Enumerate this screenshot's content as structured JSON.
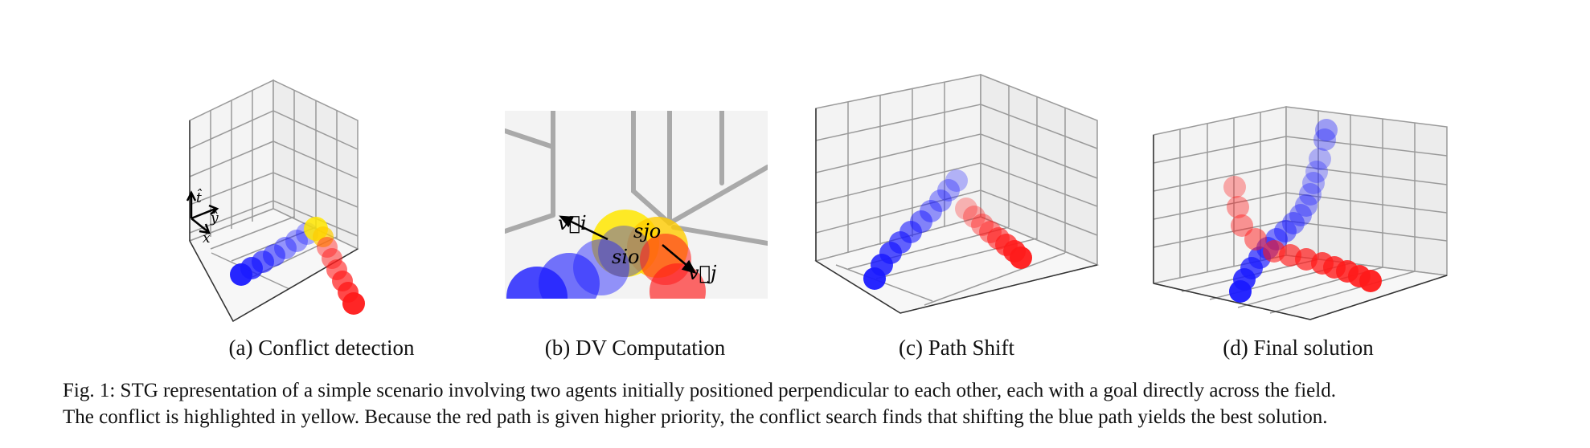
{
  "figure": {
    "panels": [
      {
        "id": "a",
        "caption": "(a) Conflict detection"
      },
      {
        "id": "b",
        "caption": "(b) DV Computation"
      },
      {
        "id": "c",
        "caption": "(c) Path Shift"
      },
      {
        "id": "d",
        "caption": "(d) Final solution"
      }
    ],
    "axis_labels": {
      "t": "t̂",
      "y": "ŷ",
      "x": "x̂"
    },
    "math_labels": {
      "vi": "v⃗i",
      "sjo": "sjo",
      "sio": "sio",
      "vj": "v⃗j"
    },
    "caption": {
      "line1": "Fig. 1: STG representation of a simple scenario involving two agents initially positioned perpendicular to each other, each with a goal directly across the field.",
      "line2": "The conflict is highlighted in yellow. Because the red path is given higher priority, the conflict search finds that shifting the blue path yields the best solution."
    }
  },
  "colors": {
    "blue": "#1a1aff",
    "red": "#ff1a1a",
    "yellow": "#ffe600",
    "grid": "#9a9a9a",
    "pane": "#f2f2f2"
  }
}
